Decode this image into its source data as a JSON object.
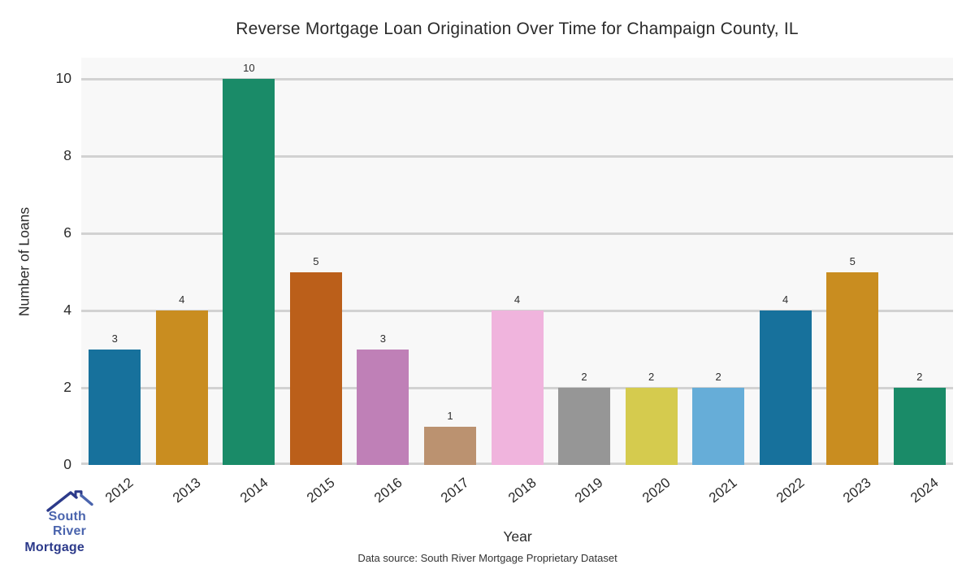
{
  "header": {
    "title": "Reverse Mortgage Loan Origination Over Time for Champaign County, IL"
  },
  "chart_data": {
    "type": "bar",
    "title": "Reverse Mortgage Loan Origination Over Time for Champaign County, IL",
    "xlabel": "Year",
    "ylabel": "Number of Loans",
    "categories": [
      "2012",
      "2013",
      "2014",
      "2015",
      "2016",
      "2017",
      "2018",
      "2019",
      "2020",
      "2021",
      "2022",
      "2023",
      "2024"
    ],
    "values": [
      3,
      4,
      10,
      5,
      3,
      1,
      4,
      2,
      2,
      2,
      4,
      5,
      2
    ],
    "bar_labels": [
      "3",
      "4",
      "10",
      "5",
      "3",
      "1",
      "4",
      "2",
      "2",
      "2",
      "4",
      "5",
      "2"
    ],
    "bar_colors": [
      "#17719c",
      "#c98d20",
      "#1a8b68",
      "#bb5f1a",
      "#bf80b7",
      "#bb9270",
      "#f0b4dd",
      "#969696",
      "#d5cb4e",
      "#66add8",
      "#17719c",
      "#c98d20",
      "#1a8b68"
    ],
    "ylim": [
      0,
      10.55
    ],
    "yticks": [
      0,
      2,
      4,
      6,
      8,
      10
    ],
    "grid": "horizontal gridlines at yticks, light gray on light background",
    "legend": "none",
    "plot_background": "#f8f8f8",
    "gridline_color": "#d2d2d2",
    "xtick_rotation_deg": -38,
    "value_labels_position": "above bars"
  },
  "footer": {
    "data_source": "Data source: South River Mortgage Proprietary Dataset"
  },
  "logo": {
    "line1": "South River",
    "line2": "Mortgage",
    "primary_color": "#4a64ad",
    "secondary_color": "#2c3a8a"
  }
}
